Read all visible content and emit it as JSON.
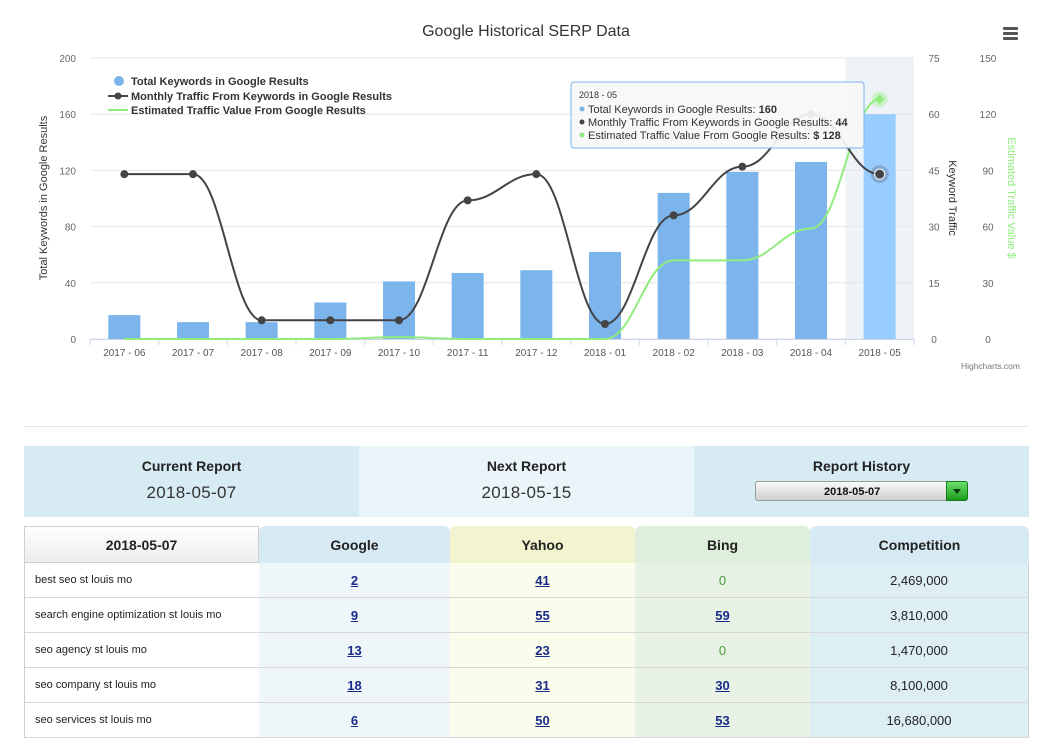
{
  "chart_data": {
    "type": "bar",
    "title": "Google Historical SERP Data",
    "categories": [
      "2017 - 06",
      "2017 - 07",
      "2017 - 08",
      "2017 - 09",
      "2017 - 10",
      "2017 - 11",
      "2017 - 12",
      "2018 - 01",
      "2018 - 02",
      "2018 - 03",
      "2018 - 04",
      "2018 - 05"
    ],
    "series": [
      {
        "name": "Total Keywords in Google Results",
        "type": "bar",
        "axis": "left",
        "color": "#7cb5ec",
        "values": [
          17,
          12,
          12,
          26,
          41,
          47,
          49,
          62,
          104,
          119,
          126,
          160
        ]
      },
      {
        "name": "Monthly Traffic From Keywords in Google Results",
        "type": "line",
        "axis": "right1",
        "color": "#434348",
        "values": [
          44,
          44,
          5,
          5,
          5,
          37,
          44,
          4,
          33,
          46,
          60,
          44
        ]
      },
      {
        "name": "Estimated Traffic Value From Google Results",
        "type": "line",
        "axis": "right2",
        "color": "#90ed7d",
        "values": [
          0,
          0,
          0,
          0,
          1,
          0,
          0,
          0,
          42,
          42,
          59,
          128
        ]
      }
    ],
    "y_left": {
      "label": "Total Keywords in Google Results",
      "range": [
        0,
        200
      ],
      "ticks": [
        "0",
        "40",
        "80",
        "120",
        "160",
        "200"
      ]
    },
    "y_right1": {
      "label": "Keyword Traffic",
      "range": [
        0,
        75
      ],
      "ticks": [
        "0",
        "15",
        "30",
        "45",
        "60",
        "75"
      ]
    },
    "y_right2": {
      "label": "Estimated Traffic Value $",
      "range": [
        0,
        150
      ],
      "ticks": [
        "0",
        "30",
        "60",
        "90",
        "120",
        "150"
      ]
    },
    "legend_position": "top-left",
    "highlighted_category": "2018 - 05",
    "tooltip": {
      "header": "2018 - 05",
      "lines": [
        {
          "label": "Total Keywords in Google Results: ",
          "value": "160",
          "color": "#7cb5ec"
        },
        {
          "label": "Monthly Traffic From Keywords in Google Results: ",
          "value": "44",
          "color": "#434348"
        },
        {
          "label": "Estimated Traffic Value From Google Results: ",
          "value": "$ 128",
          "color": "#90ed7d"
        }
      ]
    },
    "credits": "Highcharts.com"
  },
  "report": {
    "current_label": "Current Report",
    "current_date": "2018-05-07",
    "next_label": "Next Report",
    "next_date": "2018-05-15",
    "history_label": "Report History",
    "history_selected": "2018-05-07"
  },
  "table": {
    "headers": [
      "2018-05-07",
      "Google",
      "Yahoo",
      "Bing",
      "Competition"
    ],
    "rows": [
      {
        "keyword": "best seo st louis mo",
        "google": "2",
        "yahoo": "41",
        "bing": "0",
        "competition": "2,469,000"
      },
      {
        "keyword": "search engine optimization st louis mo",
        "google": "9",
        "yahoo": "55",
        "bing": "59",
        "competition": "3,810,000"
      },
      {
        "keyword": "seo agency st louis mo",
        "google": "13",
        "yahoo": "23",
        "bing": "0",
        "competition": "1,470,000"
      },
      {
        "keyword": "seo company st louis mo",
        "google": "18",
        "yahoo": "31",
        "bing": "30",
        "competition": "8,100,000"
      },
      {
        "keyword": "seo services st louis mo",
        "google": "6",
        "yahoo": "50",
        "bing": "53",
        "competition": "16,680,000"
      }
    ]
  }
}
